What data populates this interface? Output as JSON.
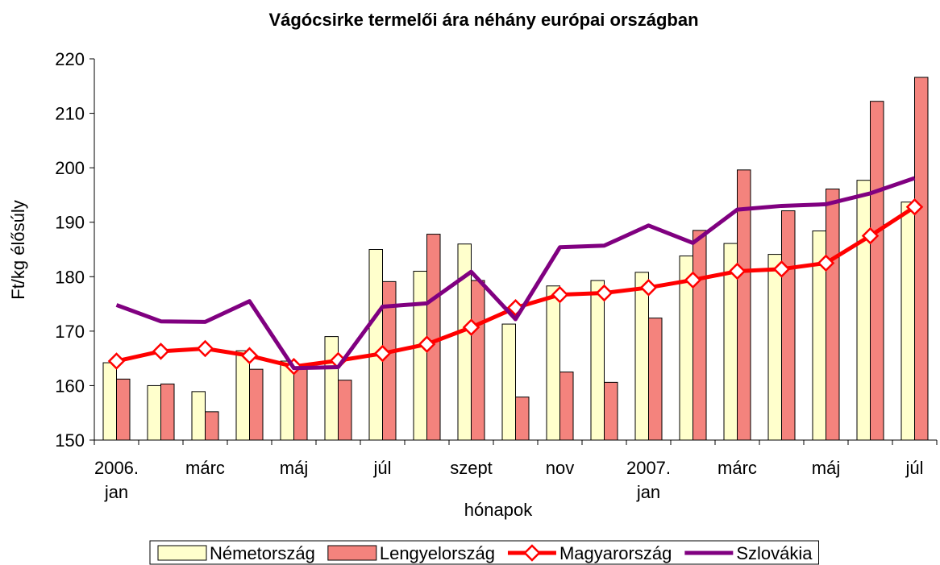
{
  "chart_data": {
    "type": "bar_line",
    "title": "Vágócsirke termelői ára néhány európai országban",
    "ylabel": "Ft/kg élősúly",
    "xlabel": "hónapok",
    "categories": [
      "2006. jan",
      null,
      "márc",
      null,
      "máj",
      null,
      "júl",
      null,
      "szept",
      null,
      "nov",
      null,
      "2007. jan",
      null,
      "márc",
      null,
      "máj",
      null,
      "júl"
    ],
    "ylim": [
      150,
      220
    ],
    "yticks": [
      150,
      160,
      170,
      180,
      190,
      200,
      210,
      220
    ],
    "grid": false,
    "legend": "bottom",
    "series": [
      {
        "name": "Németország",
        "kind": "bar",
        "color": "#ffffcc",
        "values": [
          164.2,
          160,
          158.9,
          166.4,
          164.5,
          169,
          185,
          181,
          186,
          171.3,
          178.3,
          179.3,
          180.8,
          183.8,
          186.1,
          184.1,
          188.4,
          197.7,
          193.7
        ]
      },
      {
        "name": "Lengyelország",
        "kind": "bar",
        "color": "#f4837d",
        "values": [
          161.2,
          160.3,
          155.2,
          163,
          163.6,
          161,
          179.1,
          187.8,
          179.3,
          157.9,
          162.5,
          160.6,
          172.4,
          188.5,
          199.6,
          192.1,
          196.1,
          212.2,
          216.6
        ]
      },
      {
        "name": "Magyarország",
        "kind": "line",
        "marker": "diamond",
        "color": "#ff0000",
        "values": [
          164.5,
          166.3,
          166.8,
          165.5,
          163.5,
          164.6,
          165.9,
          167.6,
          170.7,
          174.3,
          176.7,
          177,
          178,
          179.4,
          181,
          181.4,
          182.5,
          187.5,
          192.8
        ]
      },
      {
        "name": "Szlovákia",
        "kind": "line",
        "color": "#800080",
        "values": [
          174.8,
          171.8,
          171.7,
          175.5,
          163.2,
          163.4,
          174.5,
          175.1,
          180.9,
          172.2,
          185.4,
          185.7,
          189.4,
          186.2,
          192.3,
          193,
          193.3,
          195.3,
          198.1
        ]
      }
    ]
  }
}
